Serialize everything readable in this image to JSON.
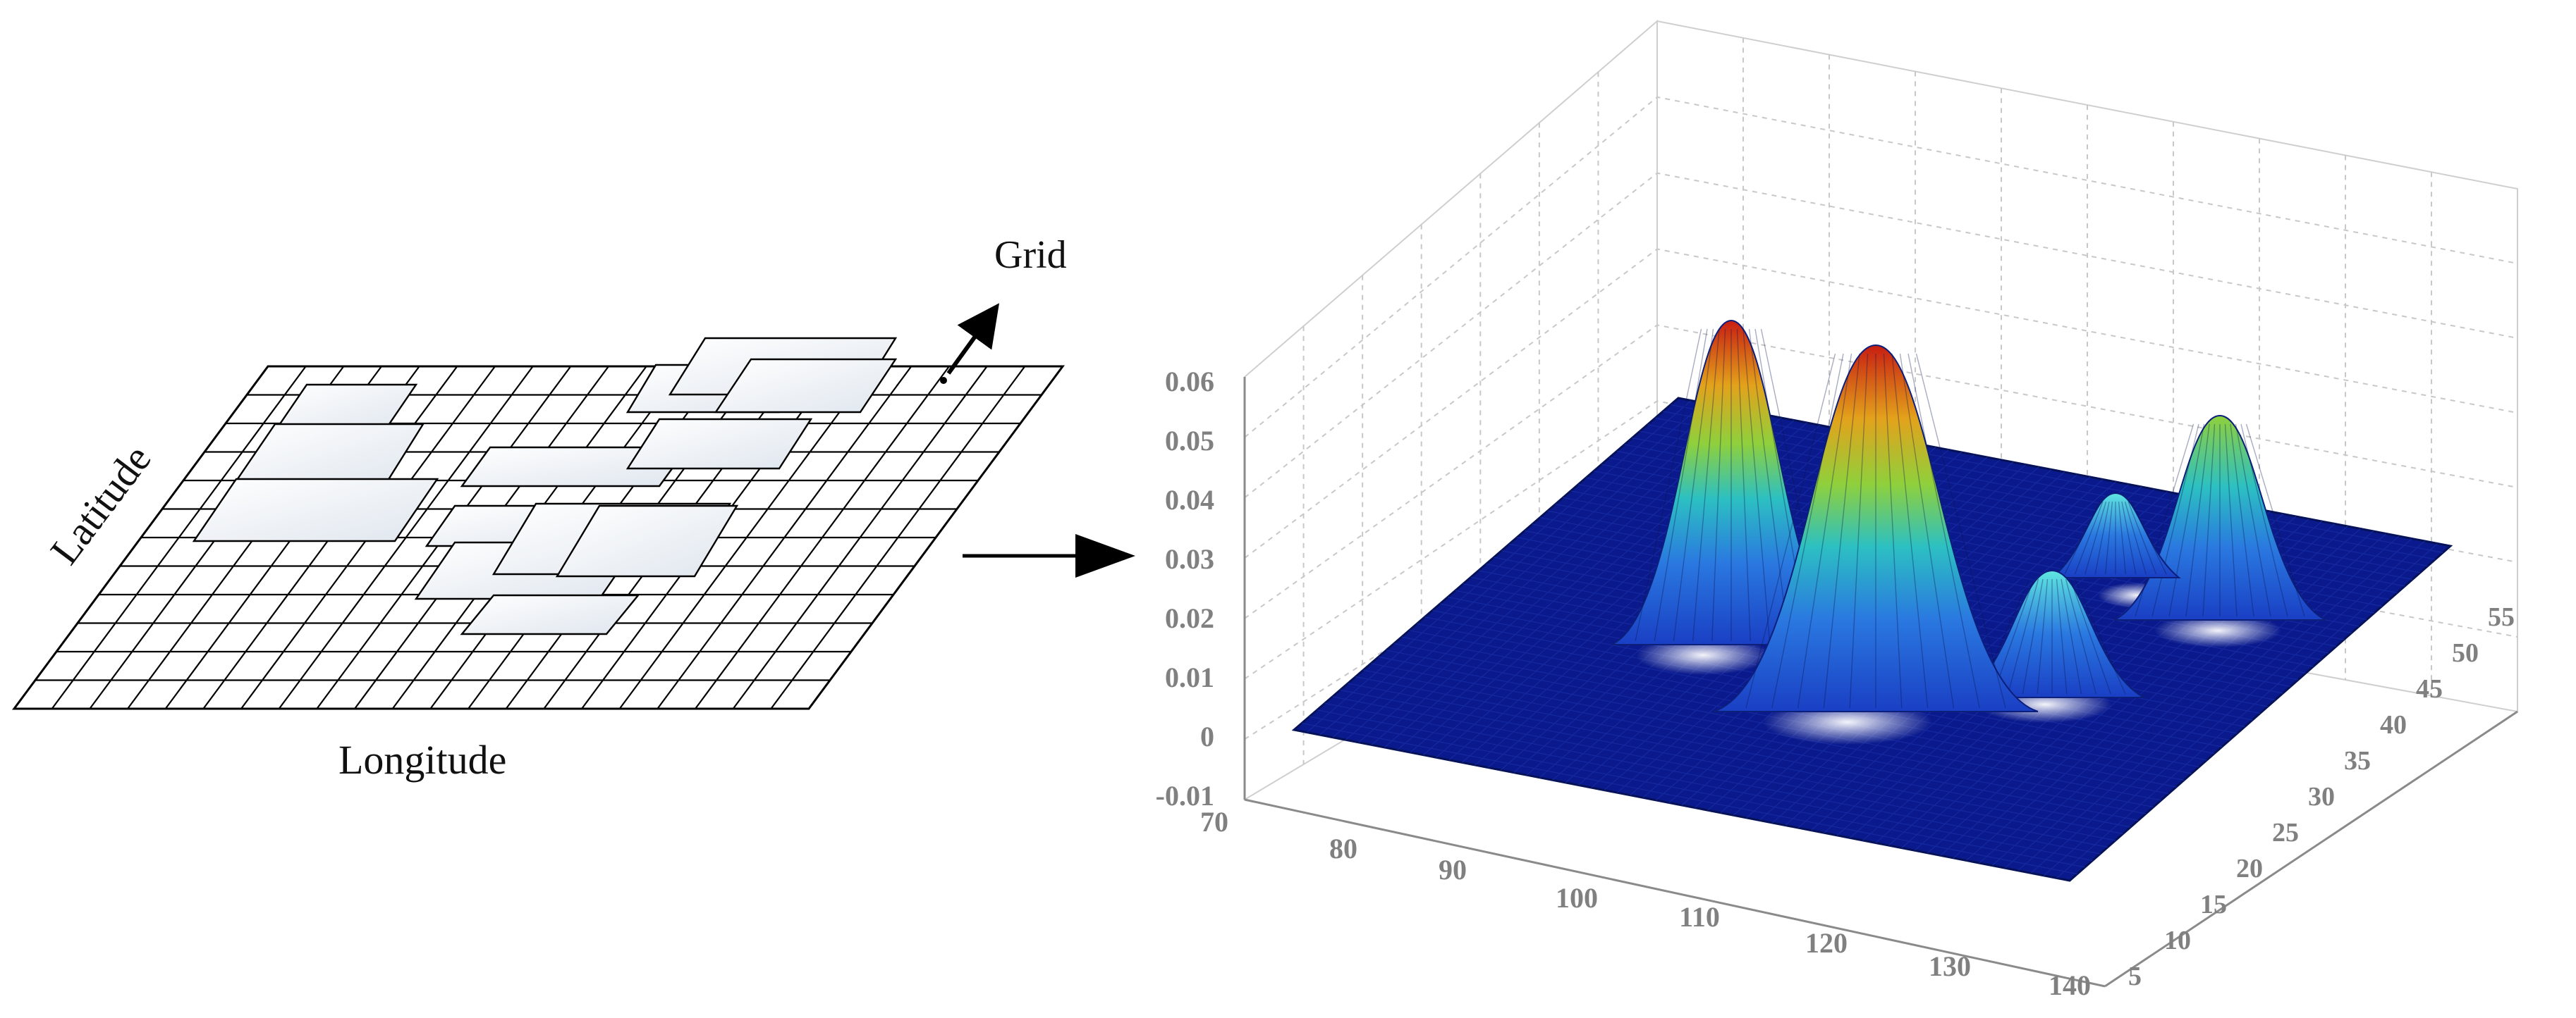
{
  "diagram": {
    "grid_label": "Grid",
    "latitude_label": "Latitude",
    "longitude_label": "Longitude"
  },
  "surface_plot": {
    "z_ticks": [
      "0.06",
      "0.05",
      "0.04",
      "0.03",
      "0.02",
      "0.01",
      "0",
      "-0.01"
    ],
    "x_ticks": [
      "70",
      "80",
      "90",
      "100",
      "110",
      "120",
      "130",
      "140"
    ],
    "y_ticks": [
      "5",
      "10",
      "15",
      "20",
      "25",
      "30",
      "35",
      "40",
      "45",
      "50",
      "55"
    ],
    "colors": {
      "base": "#0a1a8c",
      "low": "#1c4fd6",
      "mid": "#27b6c8",
      "midhigh": "#8fd03c",
      "high": "#e3a21b",
      "peak": "#c81e12"
    }
  },
  "chart_data": {
    "type": "surface3d",
    "x_ticks": [
      70,
      80,
      90,
      100,
      110,
      120,
      130,
      140
    ],
    "y_ticks": [
      5,
      10,
      15,
      20,
      25,
      30,
      35,
      40,
      45,
      50,
      55
    ],
    "z_ticks": [
      -0.01,
      0,
      0.01,
      0.02,
      0.03,
      0.04,
      0.05,
      0.06
    ],
    "xlim": [
      70,
      140
    ],
    "ylim": [
      5,
      55
    ],
    "zlim": [
      -0.01,
      0.06
    ],
    "grid": true,
    "peaks": [
      {
        "x": 96,
        "y": 45,
        "z": 0.058
      },
      {
        "x": 106,
        "y": 35,
        "z": 0.057
      },
      {
        "x": 115,
        "y": 26,
        "z": 0.03
      },
      {
        "x": 120,
        "y": 20,
        "z": 0.028
      },
      {
        "x": 125,
        "y": 40,
        "z": 0.05
      }
    ]
  }
}
